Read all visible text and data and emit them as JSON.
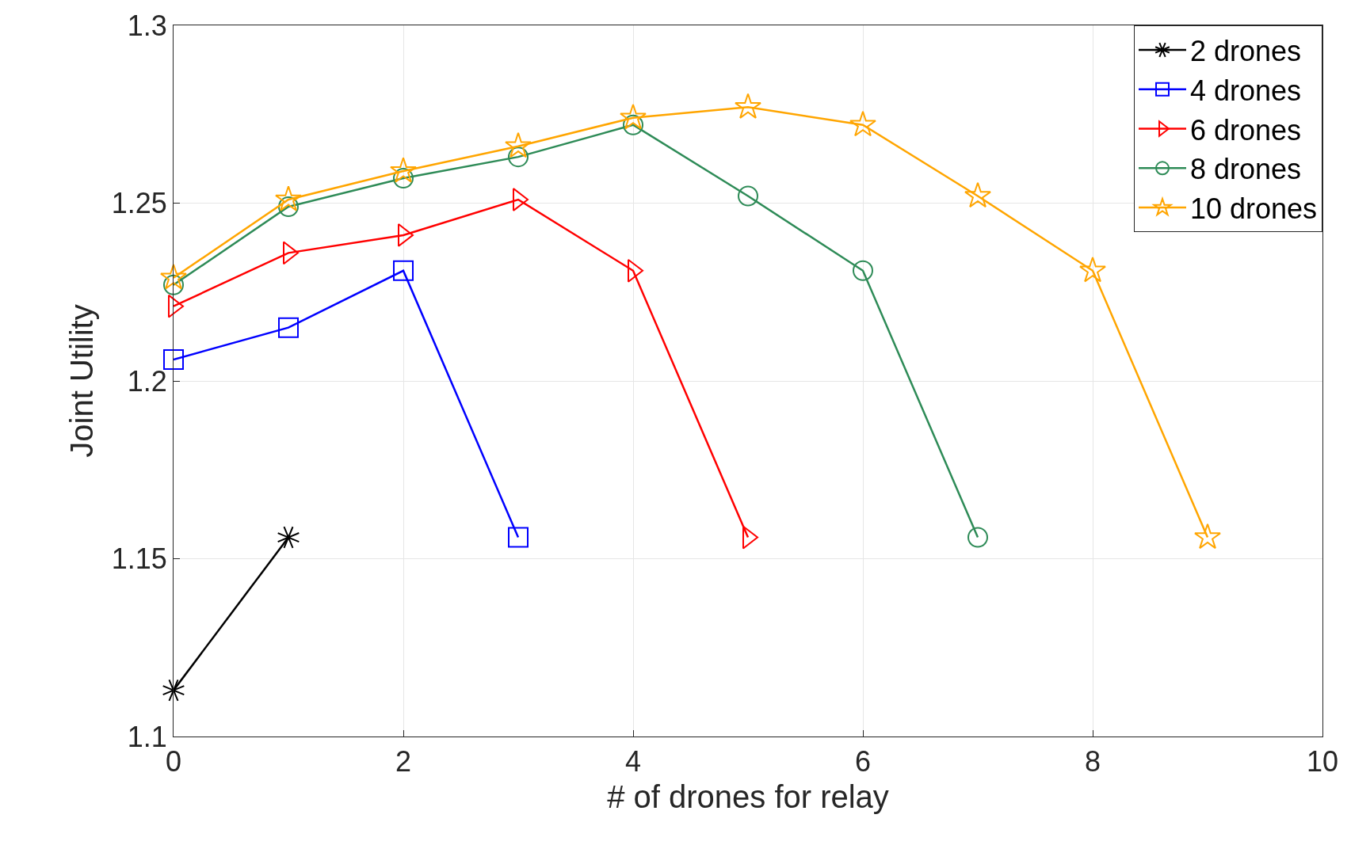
{
  "chart_data": {
    "type": "line",
    "xlabel": "# of drones for relay",
    "ylabel": "Joint Utility",
    "xlim": [
      0,
      10
    ],
    "xticks": [
      0,
      2,
      4,
      6,
      8,
      10
    ],
    "ylim": [
      1.1,
      1.3
    ],
    "yticks": [
      1.1,
      1.15,
      1.2,
      1.25,
      1.3
    ],
    "grid": true,
    "legend": "top right",
    "series": [
      {
        "name": "2 drones",
        "color": "#000000",
        "marker": "cross",
        "x": [
          0,
          1
        ],
        "values": [
          1.113,
          1.156
        ]
      },
      {
        "name": "4 drones",
        "color": "#0000ff",
        "marker": "square",
        "x": [
          0,
          1,
          2,
          3
        ],
        "values": [
          1.206,
          1.215,
          1.231,
          1.156
        ]
      },
      {
        "name": "6 drones",
        "color": "#ff0000",
        "marker": "triangle",
        "x": [
          0,
          1,
          2,
          3,
          4,
          5
        ],
        "values": [
          1.221,
          1.236,
          1.241,
          1.251,
          1.231,
          1.156
        ]
      },
      {
        "name": "8 drones",
        "color": "#2e8b57",
        "marker": "circle",
        "x": [
          0,
          1,
          2,
          3,
          4,
          5,
          6,
          7
        ],
        "values": [
          1.227,
          1.249,
          1.257,
          1.263,
          1.272,
          1.252,
          1.231,
          1.156
        ]
      },
      {
        "name": "10 drones",
        "color": "#ffa500",
        "marker": "star",
        "x": [
          0,
          1,
          2,
          3,
          4,
          5,
          6,
          7,
          8,
          9
        ],
        "values": [
          1.229,
          1.251,
          1.259,
          1.266,
          1.274,
          1.277,
          1.272,
          1.252,
          1.231,
          1.156
        ]
      }
    ]
  }
}
